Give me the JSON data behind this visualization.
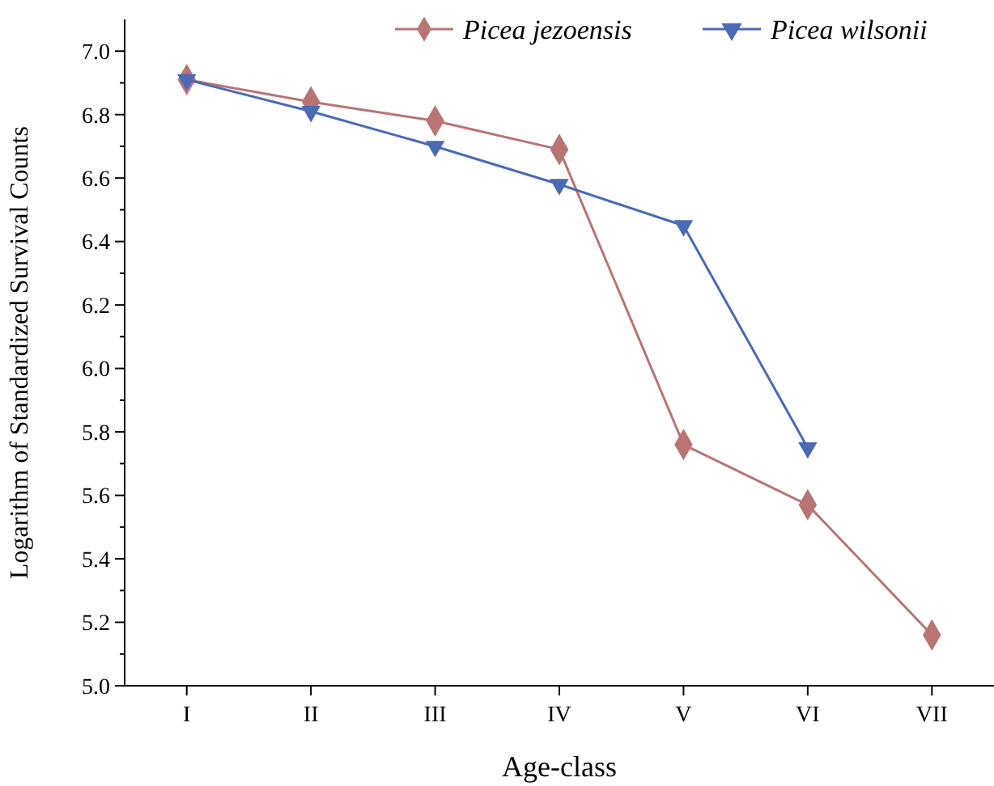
{
  "chart_data": {
    "type": "line",
    "xlabel": "Age-class",
    "ylabel": "Logarithm of Standardized Survival Counts",
    "categories": [
      "I",
      "II",
      "III",
      "IV",
      "V",
      "VI",
      "VII"
    ],
    "series": [
      {
        "name": "Picea jezoensis",
        "color": "#b97474",
        "marker": "diamond",
        "values": [
          6.91,
          6.84,
          6.78,
          6.69,
          5.76,
          5.57,
          5.16
        ]
      },
      {
        "name": "Picea wilsonii",
        "color": "#4a6ab4",
        "marker": "triangle",
        "values": [
          6.91,
          6.81,
          6.7,
          6.58,
          6.45,
          5.75,
          null
        ]
      }
    ],
    "ylim": [
      5.0,
      7.1
    ],
    "yticks": [
      {
        "value": 5.0,
        "label": "5.0"
      },
      {
        "value": 5.2,
        "label": "5.2"
      },
      {
        "value": 5.4,
        "label": "5.4"
      },
      {
        "value": 5.6,
        "label": "5.6"
      },
      {
        "value": 5.8,
        "label": "5.8"
      },
      {
        "value": 6.0,
        "label": "6.0"
      },
      {
        "value": 6.2,
        "label": "6.2"
      },
      {
        "value": 6.4,
        "label": "6.4"
      },
      {
        "value": 6.6,
        "label": "6.6"
      },
      {
        "value": 6.8,
        "label": "6.8"
      },
      {
        "value": 7.0,
        "label": "7.0"
      }
    ],
    "grid": false,
    "legend": "top right",
    "line_style": "solid"
  }
}
